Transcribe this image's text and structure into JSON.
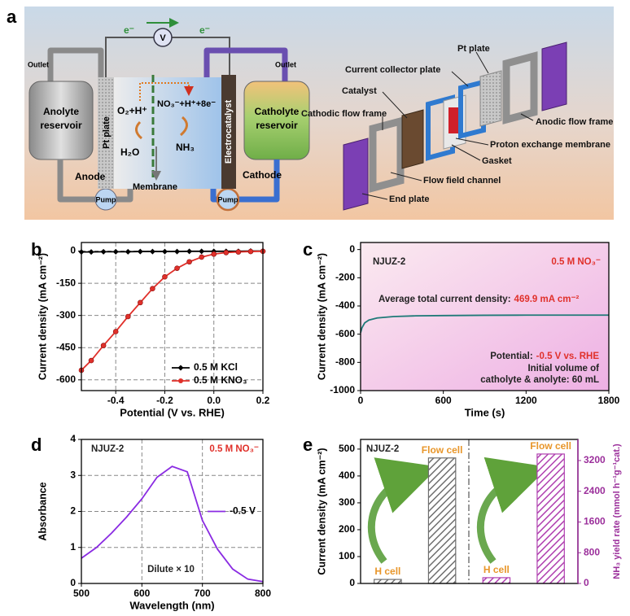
{
  "panel_labels": [
    "a",
    "b",
    "c",
    "d",
    "e"
  ],
  "schematic": {
    "electron": [
      "e⁻",
      "e⁻"
    ],
    "voltmeter": "V",
    "outlets": [
      "Outlet",
      "Outlet"
    ],
    "anolyte": [
      "Anolyte",
      "reservoir"
    ],
    "catholyte": [
      "Catholyte",
      "reservoir"
    ],
    "pt_plate": "Pt plate",
    "anode_reaction": "O₂+H⁺",
    "anode_product": "H₂O",
    "cathode_reaction": "NO₃⁻+H⁺+8e⁻",
    "cathode_product": "NH₃",
    "electrocatalyst": "Electrocatalyst",
    "anode": "Anode",
    "cathode": "Cathode",
    "membrane": "Membrane",
    "pumps": [
      "Pump",
      "Pump"
    ],
    "parts": [
      "Pt plate",
      "Current collector plate",
      "Catalyst",
      "Cathodic flow frame",
      "Anodic flow frame",
      "Proton exchange membrane",
      "Gasket",
      "Flow field channel",
      "End plate"
    ]
  },
  "chart_data": [
    {
      "type": "line",
      "xlabel": "Potential (V vs. RHE)",
      "ylabel": "Current density (mA cm⁻²)",
      "x": [
        -0.54,
        -0.5,
        -0.45,
        -0.4,
        -0.35,
        -0.3,
        -0.25,
        -0.2,
        -0.15,
        -0.1,
        -0.05,
        0,
        0.05,
        0.1,
        0.15,
        0.2
      ],
      "xlim": [
        -0.54,
        0.2
      ],
      "xticks": [
        -0.4,
        -0.2,
        {
          "value": 0,
          "label": "0.0"
        },
        0.2
      ],
      "ylim": [
        -650,
        40
      ],
      "yticks": [
        0,
        -150,
        -300,
        -450,
        -600
      ],
      "grid": true,
      "legend": "lower right",
      "series": [
        {
          "name": "0.5 M KCl",
          "color": "#000000",
          "marker": "diamond",
          "values": [
            -4,
            -4,
            -3,
            -3,
            -3,
            -2,
            -2,
            -2,
            -2,
            -1,
            -1,
            -1,
            -1,
            -1,
            0,
            0
          ]
        },
        {
          "name": "0.5 M KNO₃",
          "color": "#e0302a",
          "marker": "circle",
          "values": [
            -555,
            -510,
            -440,
            -375,
            -305,
            -240,
            -175,
            -120,
            -80,
            -50,
            -28,
            -14,
            -7,
            -4,
            -2,
            -1
          ]
        }
      ]
    },
    {
      "type": "line",
      "xlabel": "Time (s)",
      "ylabel": "Current density (mA cm⁻²)",
      "x": [
        0,
        10,
        30,
        60,
        120,
        240,
        400,
        600,
        900,
        1200,
        1500,
        1800
      ],
      "xlim": [
        0,
        1800
      ],
      "xticks": [
        0,
        600,
        1200,
        1800
      ],
      "ylim": [
        -1000,
        50
      ],
      "yticks": [
        0,
        -200,
        -400,
        -600,
        -800,
        -1000
      ],
      "grid": false,
      "series": [
        {
          "color": "#1f7a78",
          "values": [
            -590,
            -555,
            -520,
            -500,
            -485,
            -475,
            -470,
            -468,
            -466,
            -465,
            -465,
            -465
          ]
        }
      ],
      "annotations": [
        [
          {
            "text": "NJUZ-2",
            "color": "#222222"
          }
        ],
        [
          {
            "text": "0.5 M NO₃⁻",
            "color": "#e0302a"
          }
        ],
        [
          {
            "text": "Average total current density:",
            "color": "#222222"
          },
          {
            "text": "469.9 mA cm⁻²",
            "color": "#e0302a"
          }
        ],
        [
          {
            "text": "Potential:",
            "color": "#222222"
          },
          {
            "text": "-0.5 V vs. RHE",
            "color": "#e0302a"
          }
        ],
        [
          {
            "text": "Initial volume of",
            "color": "#222222"
          }
        ],
        [
          {
            "text": "catholyte & anolyte: 60 mL",
            "color": "#222222"
          }
        ]
      ]
    },
    {
      "type": "line",
      "xlabel": "Wavelength (nm)",
      "ylabel": "Absorbance",
      "x": [
        500,
        525,
        550,
        575,
        600,
        625,
        650,
        675,
        700,
        725,
        750,
        775,
        800
      ],
      "xlim": [
        500,
        800
      ],
      "xticks": [
        500,
        600,
        700,
        800
      ],
      "ylim": [
        0,
        4
      ],
      "yticks": [
        0,
        1,
        2,
        3,
        4
      ],
      "grid": true,
      "legend": "center right",
      "series": [
        {
          "name": "-0.5 V",
          "color": "#8a2be2",
          "values": [
            0.7,
            1.0,
            1.4,
            1.85,
            2.35,
            2.95,
            3.25,
            3.1,
            1.75,
            0.95,
            0.4,
            0.12,
            0.05
          ]
        }
      ],
      "annotations": [
        [
          {
            "text": "NJUZ-2",
            "color": "#222222"
          }
        ],
        [
          {
            "text": "0.5 M NO₃⁻",
            "color": "#e0302a"
          }
        ],
        [
          {
            "text": "Dilute × 10",
            "color": "#222222"
          }
        ]
      ]
    },
    {
      "type": "bar",
      "ylabel": "Current density (mA cm⁻²)",
      "y2label": "NH₃ yield rate (mmol h⁻¹g⁻¹cat.)",
      "categories": [
        "H cell",
        "Flow cell",
        "H cell",
        "Flow cell"
      ],
      "category_color": "#e8962a",
      "ylim": [
        0,
        536
      ],
      "yticks": [
        0,
        100,
        200,
        300,
        400,
        500
      ],
      "y2lim": [
        0,
        3750
      ],
      "y2ticks": [
        0,
        800,
        1600,
        2400,
        3200
      ],
      "y2color": "#9b2f9b",
      "series": [
        {
          "color": "#6e6e6e",
          "values": [
            15,
            467,
            null,
            null
          ]
        },
        {
          "color": "#b040b0",
          "axis": "y2",
          "values": [
            null,
            null,
            150,
            3370
          ]
        }
      ],
      "annotations": [
        [
          {
            "text": "NJUZ-2",
            "color": "#222222"
          }
        ]
      ]
    }
  ]
}
